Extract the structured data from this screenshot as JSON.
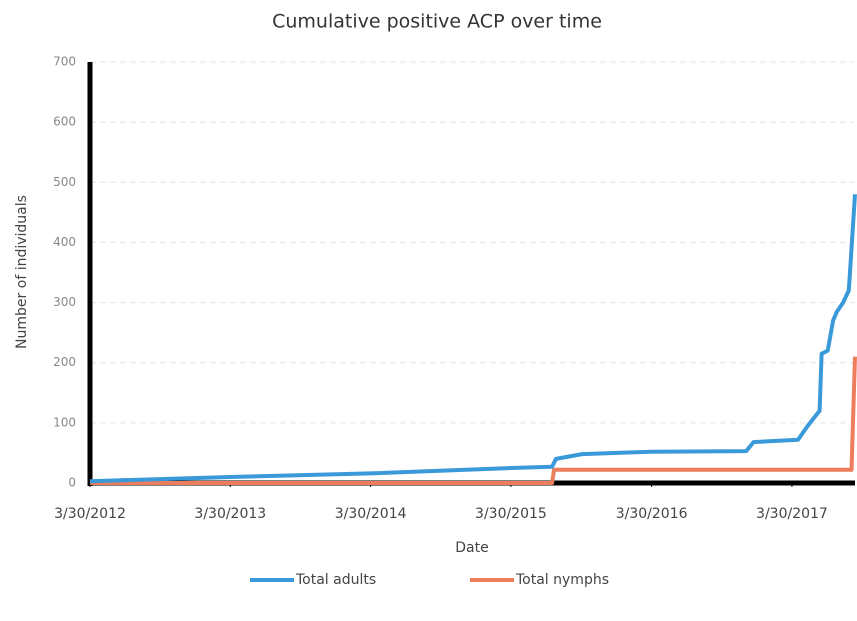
{
  "chart_data": {
    "type": "line",
    "title": "Cumulative positive ACP over time",
    "x_label": "Date",
    "y_label": "Number of individuals",
    "xlim": [
      "3/30/2012",
      "9/10/2017"
    ],
    "xticks": [
      "3/30/2012",
      "3/30/2013",
      "3/30/2014",
      "3/30/2015",
      "3/30/2016",
      "3/30/2017"
    ],
    "ylim": [
      0,
      700
    ],
    "yticks": [
      0,
      100,
      200,
      300,
      400,
      500,
      600,
      700
    ],
    "grid": true,
    "legend": "bottom",
    "series": [
      {
        "name": "Total adults",
        "color": "#3a9ad9",
        "x": [
          "3/30/2012",
          "3/30/2013",
          "3/30/2014",
          "3/30/2015",
          "7/15/2015",
          "7/25/2015",
          "10/1/2015",
          "1/1/2016",
          "3/30/2016",
          "12/1/2016",
          "12/20/2016",
          "4/15/2017",
          "5/10/2017",
          "6/10/2017",
          "6/15/2017",
          "7/1/2017",
          "7/15/2017",
          "7/25/2017",
          "8/10/2017",
          "8/25/2017",
          "9/10/2017"
        ],
        "values": [
          3,
          10,
          16,
          25,
          27,
          40,
          48,
          50,
          52,
          53,
          68,
          72,
          95,
          120,
          215,
          220,
          270,
          285,
          300,
          320,
          480
        ]
      },
      {
        "name": "Total nymphs",
        "color": "#ec7d5d",
        "x": [
          "3/30/2012",
          "7/15/2015",
          "7/20/2015",
          "9/1/2017",
          "9/10/2017"
        ],
        "values": [
          0,
          0,
          22,
          22,
          210
        ]
      }
    ]
  }
}
